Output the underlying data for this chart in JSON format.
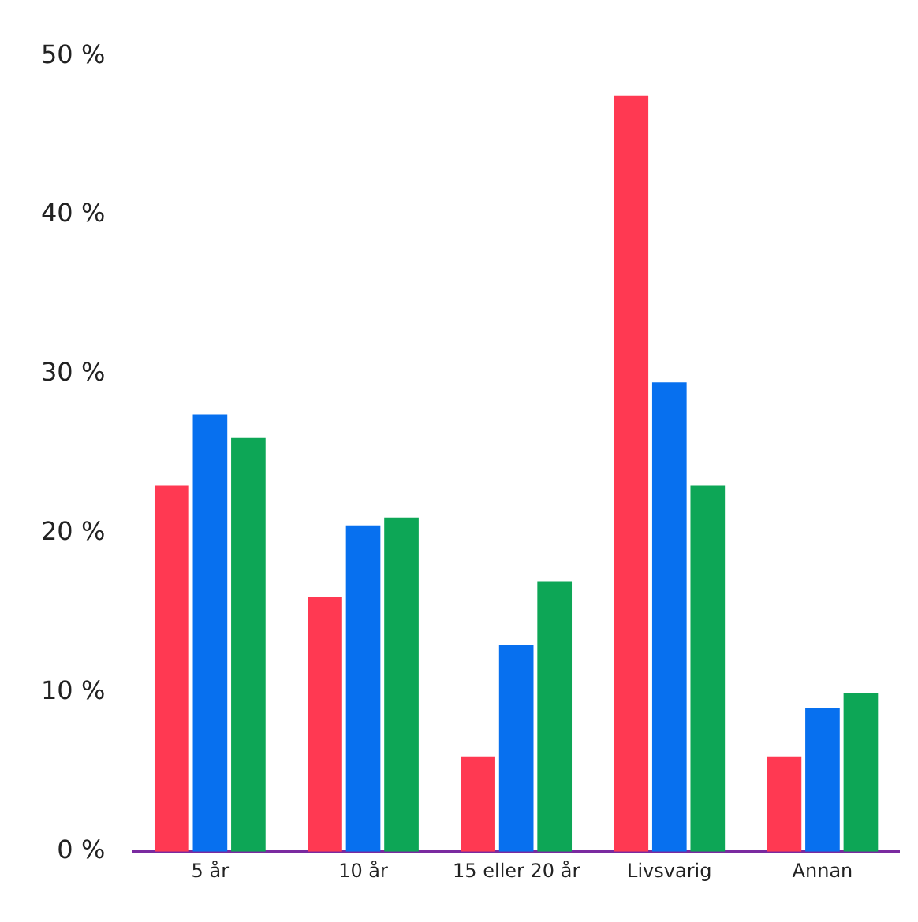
{
  "chart_data": {
    "type": "bar",
    "categories": [
      "5 år",
      "10 år",
      "15 eller 20 år",
      "Livsvarig",
      "Annan"
    ],
    "series": [
      {
        "color": "#ff3952",
        "values": [
          23,
          16,
          6,
          47.5,
          6
        ]
      },
      {
        "color": "#0770ef",
        "values": [
          27.5,
          20.5,
          13,
          29.5,
          9
        ]
      },
      {
        "color": "#0da656",
        "values": [
          26,
          21,
          17,
          23,
          10
        ]
      }
    ],
    "ylim": [
      0,
      50
    ],
    "yticks": [
      {
        "value": 0,
        "label": "0 %"
      },
      {
        "value": 10,
        "label": "10 %"
      },
      {
        "value": 20,
        "label": "20 %"
      },
      {
        "value": 30,
        "label": "30 %"
      },
      {
        "value": 40,
        "label": "40 %"
      },
      {
        "value": 50,
        "label": "50 %"
      }
    ],
    "grid": false,
    "legend": false
  }
}
